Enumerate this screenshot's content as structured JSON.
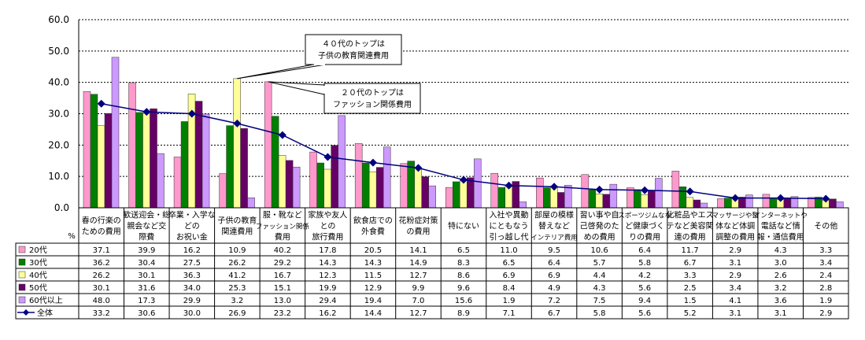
{
  "chart_data": {
    "type": "bar",
    "ylabel": "%",
    "ylim": [
      0,
      60
    ],
    "yticks": [
      "0.0",
      "10.0",
      "20.0",
      "30.0",
      "40.0",
      "50.0",
      "60.0"
    ],
    "grid": true,
    "legend": "table-left",
    "categories": [
      [
        "春の行楽の",
        "ための費用"
      ],
      [
        "歓送迎会・総",
        "親会など交",
        "際費"
      ],
      [
        "卒業・入学な",
        "どの",
        "お祝い金"
      ],
      [
        "子供の教育",
        "関連費用"
      ],
      [
        "服・靴など",
        "ファッション関係",
        "費用"
      ],
      [
        "家族や友人",
        "との",
        "旅行費用"
      ],
      [
        "飲食店での",
        "外食費"
      ],
      [
        "花粉症対策",
        "の費用"
      ],
      [
        "特にない"
      ],
      [
        "入社や異動",
        "にともなう",
        "引っ越し代"
      ],
      [
        "部屋の模様",
        "替えなど",
        "インテリア費用"
      ],
      [
        "習い事や自",
        "己啓発のた",
        "めの費用"
      ],
      [
        "スポーツジムなな",
        "ど健康づく",
        "りの費用"
      ],
      [
        "化粧品やエス",
        "テなど美容関",
        "連の費用"
      ],
      [
        "マッサージや整",
        "体など体調",
        "調整の費用"
      ],
      [
        "インターネットや",
        "電話など情",
        "報・通信費用"
      ],
      [
        "その他"
      ]
    ],
    "series": [
      {
        "name": "20代",
        "color": "#ff99cc",
        "values": [
          37.1,
          39.9,
          16.2,
          10.9,
          40.2,
          17.8,
          20.5,
          14.1,
          6.5,
          11.0,
          9.5,
          10.6,
          6.4,
          11.7,
          2.9,
          4.3,
          3.3
        ]
      },
      {
        "name": "30代",
        "color": "#008000",
        "values": [
          36.2,
          30.4,
          27.5,
          26.2,
          29.2,
          14.3,
          14.3,
          14.9,
          8.3,
          6.5,
          6.4,
          5.7,
          5.8,
          6.7,
          3.1,
          3.0,
          3.4
        ]
      },
      {
        "name": "40代",
        "color": "#ffff99",
        "values": [
          26.2,
          30.1,
          36.3,
          41.2,
          16.7,
          12.3,
          11.5,
          12.7,
          8.6,
          6.9,
          6.9,
          4.4,
          4.2,
          3.3,
          2.9,
          2.6,
          2.4
        ]
      },
      {
        "name": "50代",
        "color": "#660066",
        "values": [
          30.1,
          31.6,
          34.0,
          25.3,
          15.1,
          19.9,
          12.9,
          9.9,
          9.6,
          8.4,
          4.9,
          4.3,
          5.6,
          2.5,
          3.4,
          3.2,
          2.8
        ]
      },
      {
        "name": "60代以上",
        "color": "#cc99ff",
        "values": [
          48.0,
          17.3,
          29.9,
          3.2,
          13.0,
          29.4,
          19.4,
          7.0,
          15.6,
          1.9,
          7.2,
          7.5,
          9.4,
          1.5,
          4.1,
          3.6,
          1.9
        ]
      }
    ],
    "line": {
      "name": "全体",
      "color": "#000080",
      "values": [
        33.2,
        30.6,
        30.0,
        26.9,
        23.2,
        16.2,
        14.4,
        12.7,
        8.9,
        7.1,
        6.7,
        5.8,
        5.6,
        5.2,
        3.1,
        3.1,
        2.9
      ]
    },
    "annotations": [
      {
        "lines": [
          "４０代のトップは",
          "子供の教育関連費用"
        ],
        "category_index": 3,
        "series": "40代"
      },
      {
        "lines": [
          "２０代のトップは",
          "ファッション関係費用"
        ],
        "category_index": 4,
        "series": "20代"
      }
    ]
  }
}
